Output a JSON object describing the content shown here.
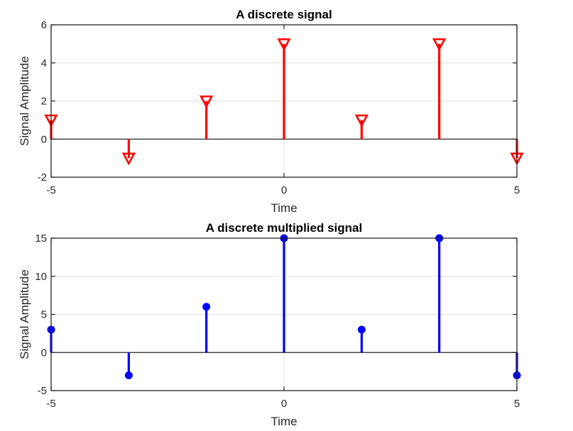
{
  "chart_data": [
    {
      "type": "stem",
      "title": "A discrete signal",
      "xlabel": "Time",
      "ylabel": "Signal Amplitude",
      "xlim": [
        -5,
        5
      ],
      "ylim": [
        -2,
        6
      ],
      "xticks": [
        -5,
        0,
        5
      ],
      "yticks": [
        -2,
        0,
        2,
        4,
        6
      ],
      "grid": true,
      "marker": "triangle-down",
      "color": "#ff0000",
      "x": [
        -5,
        -3.333,
        -1.667,
        0,
        1.667,
        3.333,
        5
      ],
      "values": [
        1,
        -1,
        2,
        5,
        1,
        5,
        -1
      ]
    },
    {
      "type": "stem",
      "title": "A discrete multiplied signal",
      "xlabel": "Time",
      "ylabel": "Signal Amplitude",
      "xlim": [
        -5,
        5
      ],
      "ylim": [
        -5,
        15
      ],
      "xticks": [
        -5,
        0,
        5
      ],
      "yticks": [
        -5,
        0,
        5,
        10,
        15
      ],
      "grid": true,
      "marker": "filled-circle",
      "color": "#0000ff",
      "x": [
        -5,
        -3.333,
        -1.667,
        0,
        1.667,
        3.333,
        5
      ],
      "values": [
        3,
        -3,
        6,
        15,
        3,
        15,
        -3
      ]
    }
  ]
}
